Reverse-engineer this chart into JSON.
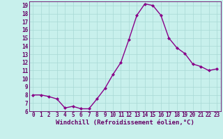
{
  "x": [
    0,
    1,
    2,
    3,
    4,
    5,
    6,
    7,
    8,
    9,
    10,
    11,
    12,
    13,
    14,
    15,
    16,
    17,
    18,
    19,
    20,
    21,
    22,
    23
  ],
  "y": [
    8.0,
    8.0,
    7.8,
    7.5,
    6.4,
    6.6,
    6.3,
    6.3,
    7.5,
    8.8,
    10.5,
    12.0,
    14.8,
    17.8,
    19.2,
    19.0,
    17.8,
    15.0,
    13.8,
    13.1,
    11.8,
    11.5,
    11.0,
    11.2
  ],
  "line_color": "#880088",
  "marker": "D",
  "marker_size": 2.0,
  "line_width": 1.0,
  "bg_color": "#c8f0ec",
  "grid_color": "#a8d8d4",
  "xlabel": "Windchill (Refroidissement éolien,°C)",
  "xlabel_color": "#660066",
  "tick_color": "#660066",
  "ylim": [
    6,
    19.5
  ],
  "xlim": [
    -0.5,
    23.5
  ],
  "yticks": [
    6,
    7,
    8,
    9,
    10,
    11,
    12,
    13,
    14,
    15,
    16,
    17,
    18,
    19
  ],
  "xticks": [
    0,
    1,
    2,
    3,
    4,
    5,
    6,
    7,
    8,
    9,
    10,
    11,
    12,
    13,
    14,
    15,
    16,
    17,
    18,
    19,
    20,
    21,
    22,
    23
  ],
  "font_size": 5.5,
  "xlabel_font_size": 6.5
}
